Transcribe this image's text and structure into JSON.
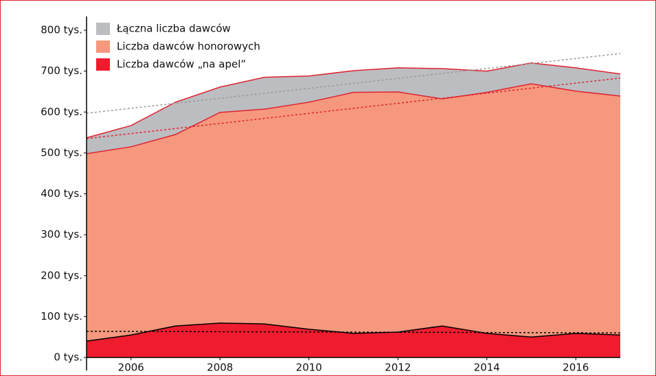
{
  "chart_data": {
    "type": "area",
    "x": [
      2005,
      2006,
      2007,
      2008,
      2009,
      2010,
      2011,
      2012,
      2013,
      2014,
      2015,
      2016,
      2017
    ],
    "series": [
      {
        "name": "Łączna liczba dawców",
        "color": "#bcbdc1",
        "line_color": "#e0202e",
        "values": [
          537,
          567,
          624,
          661,
          685,
          688,
          701,
          708,
          706,
          700,
          720,
          708,
          693
        ]
      },
      {
        "name": "Liczba dawców honorowych",
        "color": "#f5987e",
        "line_color": "#e0202e",
        "values": [
          498,
          515,
          545,
          599,
          607,
          624,
          648,
          649,
          632,
          648,
          669,
          651,
          639
        ]
      },
      {
        "name": "Liczba dawców „na apel”",
        "color": "#ee1c2e",
        "line_color": "#000000",
        "values": [
          40,
          55,
          77,
          84,
          82,
          69,
          59,
          62,
          77,
          59,
          50,
          59,
          55
        ]
      }
    ],
    "trendlines": [
      {
        "color": "#999999",
        "values": [
          597,
          743
        ]
      },
      {
        "color": "#e0202e",
        "values": [
          535,
          683
        ]
      },
      {
        "color": "#000000",
        "values": [
          64,
          60
        ]
      }
    ],
    "xlim": [
      2005,
      2017
    ],
    "xticks": [
      2006,
      2008,
      2010,
      2012,
      2014,
      2016
    ],
    "ylim": [
      0,
      800
    ],
    "yticks": [
      {
        "value": 0,
        "label": "0 tys."
      },
      {
        "value": 100,
        "label": "100 tys."
      },
      {
        "value": 200,
        "label": "200 tys."
      },
      {
        "value": 300,
        "label": "300 tys."
      },
      {
        "value": 400,
        "label": "400 tys."
      },
      {
        "value": 500,
        "label": "500 tys."
      },
      {
        "value": 600,
        "label": "600 tys."
      },
      {
        "value": 700,
        "label": "700 tys."
      },
      {
        "value": 800,
        "label": "800 tys."
      }
    ],
    "legend": "top-left"
  }
}
